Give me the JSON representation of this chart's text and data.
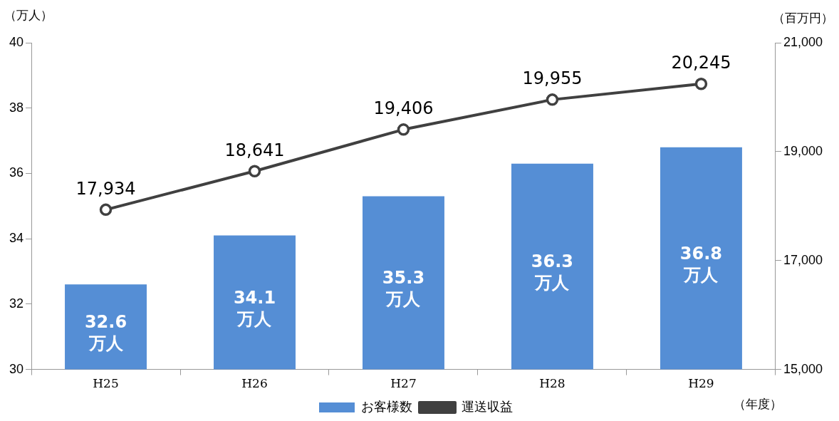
{
  "chart_data": {
    "type": "bar",
    "categories": [
      "H25",
      "H26",
      "H27",
      "H28",
      "H29"
    ],
    "ylabel": "（万人）",
    "y2label": "（百万円）",
    "xlabel": "（年度）",
    "ylim": [
      30,
      40
    ],
    "yticks": [
      30,
      32,
      34,
      36,
      38,
      40
    ],
    "y2lim": [
      15000,
      21000
    ],
    "y2ticks": [
      {
        "value": 15000,
        "label": "15,000"
      },
      {
        "value": 17000,
        "label": "17,000"
      },
      {
        "value": 19000,
        "label": "19,000"
      },
      {
        "value": 21000,
        "label": "21,000"
      }
    ],
    "series": [
      {
        "name": "お客様数",
        "color": "#558ed5",
        "values": [
          32.6,
          34.1,
          35.3,
          36.3,
          36.8
        ],
        "value_labels": [
          "32.6\n万人",
          "34.1\n万人",
          "35.3\n万人",
          "36.3\n万人",
          "36.8\n万人"
        ]
      },
      {
        "name": "運送収益",
        "type": "line",
        "axis": "y2",
        "color": "#404040",
        "values": [
          17934,
          18641,
          19406,
          19955,
          20245
        ],
        "value_labels": [
          "17,934",
          "18,641",
          "19,406",
          "19,955",
          "20,245"
        ]
      }
    ],
    "grid": false,
    "legend": "bottom",
    "marker": "circle",
    "line_style": "solid"
  }
}
